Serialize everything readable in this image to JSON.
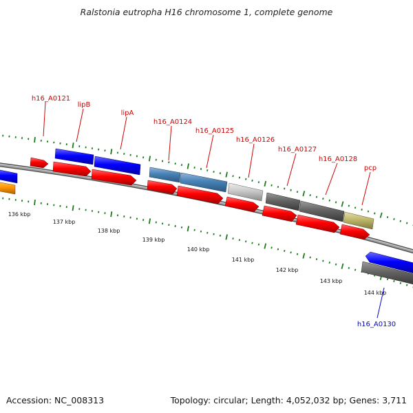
{
  "title": "Ralstonia eutropha H16 chromosome 1, complete genome",
  "footer": {
    "accession": "Accession: NC_008313",
    "topology": "Topology: circular; Length: 4,052,032 bp; Genes: 3,711"
  },
  "colors": {
    "label_red": "#d10000",
    "label_blue": "#0000c8",
    "tick_green": "#1a7a1a",
    "backbone": "#808080"
  },
  "kbp_labels": [
    "136 kbp",
    "137 kbp",
    "138 kbp",
    "139 kbp",
    "140 kbp",
    "141 kbp",
    "142 kbp",
    "143 kbp",
    "144 kbp"
  ],
  "gene_labels": [
    "h16_A0121",
    "lipB",
    "lipA",
    "h16_A0124",
    "h16_A0125",
    "h16_A0126",
    "h16_A0127",
    "h16_A0128",
    "pcp",
    "h16_A0130"
  ]
}
